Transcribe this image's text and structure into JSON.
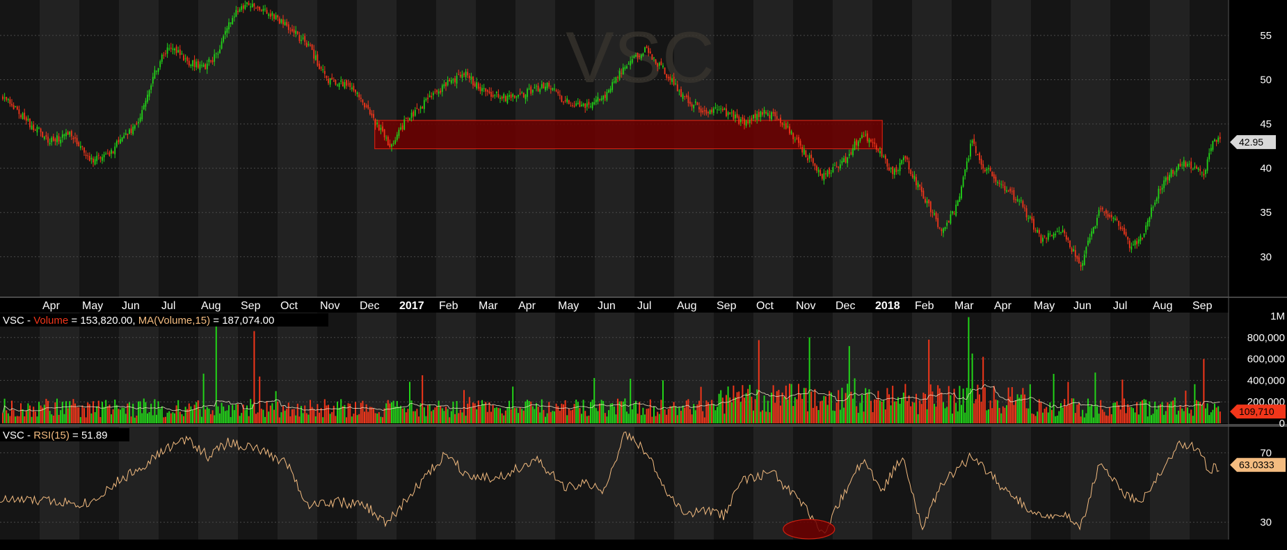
{
  "symbol": "VSC",
  "watermark": "VSC",
  "colors": {
    "background": "#000000",
    "band_dark": "#151515",
    "band_light": "#222222",
    "grid": "#4a4a4a",
    "up": "#22d418",
    "down": "#f2361a",
    "ma_line": "#f2e6c8",
    "rsi_line": "#f4bc80",
    "zone_fill": "#6e0000",
    "zone_stroke": "#d02010",
    "axis_text": "#ffffff"
  },
  "price_panel": {
    "y_ticks": [
      "55",
      "50",
      "45",
      "40",
      "35",
      "30"
    ],
    "last_price_label": "42.95",
    "last_price": 42.95
  },
  "time_axis": {
    "labels": [
      "Apr",
      "May",
      "Jun",
      "Jul",
      "Aug",
      "Sep",
      "Oct",
      "Nov",
      "Dec",
      "2017",
      "Feb",
      "Mar",
      "Apr",
      "May",
      "Jun",
      "Jul",
      "Aug",
      "Sep",
      "Oct",
      "Nov",
      "Dec",
      "2018",
      "Feb",
      "Mar",
      "Apr",
      "May",
      "Jun",
      "Jul",
      "Aug",
      "Sep"
    ],
    "bold": [
      "2017",
      "2018"
    ]
  },
  "volume_panel": {
    "legend_symbol": "VSC - ",
    "legend_volume_name": "Volume",
    "legend_volume_value": " = 153,820.00, ",
    "legend_ma_name": "MA(Volume,15)",
    "legend_ma_value": " = 187,074.00",
    "y_ticks": [
      "1M",
      "800,000",
      "600,000",
      "400,000",
      "200,000",
      "0"
    ],
    "last_volume_label": "109,710",
    "last_volume": 109710
  },
  "rsi_panel": {
    "legend_symbol": "VSC - ",
    "legend_name": "RSI(15)",
    "legend_value": " = 51.89",
    "y_ticks": [
      "70",
      "30"
    ],
    "last_rsi_label": "63.0333",
    "last_rsi": 63.0333
  },
  "chart_data": [
    {
      "type": "candlestick",
      "title": "VSC",
      "ylim": [
        25.5,
        59
      ],
      "x_range": [
        "2016-03",
        "2018-09"
      ],
      "price_path": [
        [
          "2016-03",
          48
        ],
        [
          "2016-03",
          45
        ],
        [
          "2016-04",
          43
        ],
        [
          "2016-04",
          44
        ],
        [
          "2016-05",
          41
        ],
        [
          "2016-05",
          41.5
        ],
        [
          "2016-06",
          44
        ],
        [
          "2016-06",
          45
        ],
        [
          "2016-06",
          50
        ],
        [
          "2016-07",
          54
        ],
        [
          "2016-07",
          52
        ],
        [
          "2016-08",
          51.5
        ],
        [
          "2016-08",
          53
        ],
        [
          "2016-08",
          57
        ],
        [
          "2016-09",
          58.5
        ],
        [
          "2016-09",
          57.5
        ],
        [
          "2016-10",
          56
        ],
        [
          "2016-10",
          54
        ],
        [
          "2016-11",
          50
        ],
        [
          "2016-11",
          49.5
        ],
        [
          "2016-12",
          47.5
        ],
        [
          "2016-12",
          45
        ],
        [
          "2016-12",
          42.5
        ],
        [
          "2017-01",
          45.5
        ],
        [
          "2017-01",
          47.5
        ],
        [
          "2017-02",
          49.5
        ],
        [
          "2017-02",
          50.5
        ],
        [
          "2017-03",
          48.5
        ],
        [
          "2017-03",
          48
        ],
        [
          "2017-04",
          48.5
        ],
        [
          "2017-04",
          49.5
        ],
        [
          "2017-05",
          47.5
        ],
        [
          "2017-05",
          47.2
        ],
        [
          "2017-06",
          48
        ],
        [
          "2017-06",
          51.5
        ],
        [
          "2017-07",
          53.5
        ],
        [
          "2017-07",
          51
        ],
        [
          "2017-08",
          48
        ],
        [
          "2017-08",
          46.5
        ],
        [
          "2017-09",
          46.5
        ],
        [
          "2017-09",
          45
        ],
        [
          "2017-10",
          46.5
        ],
        [
          "2017-10",
          45
        ],
        [
          "2017-11",
          42
        ],
        [
          "2017-11",
          39
        ],
        [
          "2017-12",
          40.5
        ],
        [
          "2017-12",
          44
        ],
        [
          "2018-01",
          42
        ],
        [
          "2018-01",
          39.5
        ],
        [
          "2018-01",
          41
        ],
        [
          "2018-02",
          37
        ],
        [
          "2018-02",
          33
        ],
        [
          "2018-03",
          36
        ],
        [
          "2018-03",
          43
        ],
        [
          "2018-03",
          40
        ],
        [
          "2018-04",
          38
        ],
        [
          "2018-04",
          36
        ],
        [
          "2018-05",
          32
        ],
        [
          "2018-05",
          33
        ],
        [
          "2018-06",
          29
        ],
        [
          "2018-06",
          35.5
        ],
        [
          "2018-07",
          34
        ],
        [
          "2018-07",
          31
        ],
        [
          "2018-07",
          32.5
        ],
        [
          "2018-08",
          37
        ],
        [
          "2018-08",
          39.5
        ],
        [
          "2018-08",
          40.5
        ],
        [
          "2018-09",
          40
        ],
        [
          "2018-09",
          39.5
        ],
        [
          "2018-09",
          43.5
        ],
        [
          "2018-09",
          42.95
        ]
      ],
      "resistance_zone": {
        "x_start": "2016-12",
        "x_end": "2018-01",
        "y_low": 42.2,
        "y_high": 45.4
      }
    },
    {
      "type": "bar",
      "title": "Volume",
      "ylim": [
        0,
        1000000
      ],
      "typical_volume": 150000,
      "volume_spikes": [
        [
          "2016-08",
          920000
        ],
        [
          "2016-09",
          860000
        ],
        [
          "2017-12",
          720000
        ],
        [
          "2018-02",
          780000
        ],
        [
          "2018-03",
          990000
        ],
        [
          "2018-03",
          620000
        ],
        [
          "2018-09",
          600000
        ]
      ],
      "ma_series_name": "MA(Volume,15)"
    },
    {
      "type": "line",
      "title": "RSI(15)",
      "ylim": [
        20,
        85
      ],
      "levels": [
        70,
        30
      ],
      "rsi_path": [
        [
          "2016-03",
          43
        ],
        [
          "2016-04",
          42
        ],
        [
          "2016-05",
          41
        ],
        [
          "2016-05",
          50
        ],
        [
          "2016-06",
          61
        ],
        [
          "2016-07",
          73
        ],
        [
          "2016-07",
          78
        ],
        [
          "2016-08",
          68
        ],
        [
          "2016-08",
          76
        ],
        [
          "2016-09",
          72
        ],
        [
          "2016-10",
          64
        ],
        [
          "2016-10",
          40
        ],
        [
          "2016-11",
          42
        ],
        [
          "2016-12",
          39
        ],
        [
          "2016-12",
          29
        ],
        [
          "2017-01",
          50
        ],
        [
          "2017-02",
          70
        ],
        [
          "2017-02",
          58
        ],
        [
          "2017-03",
          55
        ],
        [
          "2017-04",
          66
        ],
        [
          "2017-05",
          50
        ],
        [
          "2017-05",
          52
        ],
        [
          "2017-06",
          48
        ],
        [
          "2017-06",
          81
        ],
        [
          "2017-07",
          72
        ],
        [
          "2017-07",
          50
        ],
        [
          "2017-08",
          34
        ],
        [
          "2017-08",
          37
        ],
        [
          "2017-09",
          34
        ],
        [
          "2017-09",
          55
        ],
        [
          "2017-10",
          58
        ],
        [
          "2017-11",
          40
        ],
        [
          "2017-11",
          22
        ],
        [
          "2017-12",
          45
        ],
        [
          "2017-12",
          66
        ],
        [
          "2018-01",
          48
        ],
        [
          "2018-01",
          68
        ],
        [
          "2018-02",
          28
        ],
        [
          "2018-02",
          52
        ],
        [
          "2018-03",
          68
        ],
        [
          "2018-04",
          45
        ],
        [
          "2018-05",
          33
        ],
        [
          "2018-05",
          36
        ],
        [
          "2018-06",
          27
        ],
        [
          "2018-06",
          65
        ],
        [
          "2018-07",
          48
        ],
        [
          "2018-07",
          40
        ],
        [
          "2018-08",
          58
        ],
        [
          "2018-08",
          76
        ],
        [
          "2018-09",
          73
        ],
        [
          "2018-09",
          60
        ],
        [
          "2018-09",
          63
        ]
      ],
      "highlighted_low": [
        "2017-11",
        22
      ]
    }
  ]
}
